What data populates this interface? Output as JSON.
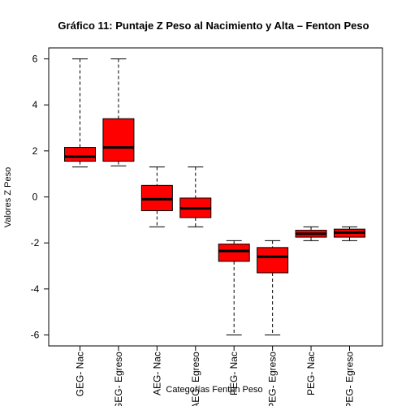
{
  "chart_data": {
    "type": "box",
    "title": "Gráfico 11: Puntaje Z Peso al Nacimiento y Alta – Fenton Peso",
    "xlabel": "Categorías Fenton Peso",
    "ylabel": "Valores Z Peso",
    "ylim": [
      -6.5,
      6.5
    ],
    "yticks": [
      -6,
      -4,
      -2,
      0,
      2,
      4,
      6
    ],
    "grid": false,
    "fill_color": "#ff0000",
    "categories": [
      "GEG- Nac",
      "GEG- Egreso",
      "AEG- Nac",
      "AEG- Egreso",
      "PEG- Nac",
      "PEG- Egreso",
      "PEG- Nac",
      "PEG- Egreso"
    ],
    "boxes": [
      {
        "category": "GEG- Nac",
        "whisker_low": 1.3,
        "q1": 1.55,
        "median": 1.75,
        "q3": 2.15,
        "whisker_high": 6.0
      },
      {
        "category": "GEG- Egreso",
        "whisker_low": 1.35,
        "q1": 1.55,
        "median": 2.15,
        "q3": 3.4,
        "whisker_high": 6.0
      },
      {
        "category": "AEG- Nac",
        "whisker_low": -1.3,
        "q1": -0.6,
        "median": -0.1,
        "q3": 0.5,
        "whisker_high": 1.3
      },
      {
        "category": "AEG- Egreso",
        "whisker_low": -1.3,
        "q1": -0.9,
        "median": -0.5,
        "q3": -0.05,
        "whisker_high": 1.3
      },
      {
        "category": "PEG- Nac",
        "whisker_low": -6.0,
        "q1": -2.8,
        "median": -2.35,
        "q3": -2.05,
        "whisker_high": -1.9
      },
      {
        "category": "PEG- Egreso",
        "whisker_low": -6.0,
        "q1": -3.3,
        "median": -2.6,
        "q3": -2.2,
        "whisker_high": -1.9
      },
      {
        "category": "PEG- Nac",
        "whisker_low": -1.9,
        "q1": -1.75,
        "median": -1.6,
        "q3": -1.45,
        "whisker_high": -1.3
      },
      {
        "category": "PEG- Egreso",
        "whisker_low": -1.9,
        "q1": -1.75,
        "median": -1.55,
        "q3": -1.4,
        "whisker_high": -1.3
      }
    ]
  }
}
